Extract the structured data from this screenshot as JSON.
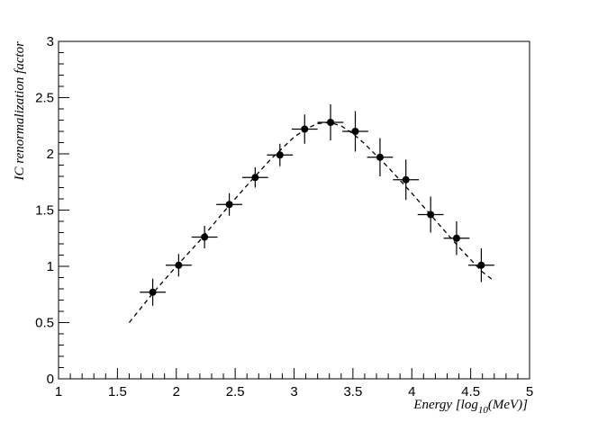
{
  "chart_data": {
    "type": "scatter",
    "xlabel_main": "Energy [log",
    "xlabel_sub": "10",
    "xlabel_tail": "(MeV)]",
    "ylabel": "IC renormalization factor",
    "xlim": [
      1,
      5
    ],
    "ylim": [
      0,
      3
    ],
    "x_ticks": [
      "1",
      "1.5",
      "2",
      "2.5",
      "3",
      "3.5",
      "4",
      "4.5",
      "5"
    ],
    "y_ticks": [
      "0",
      "0.5",
      "1",
      "1.5",
      "2",
      "2.5",
      "3"
    ],
    "grid": false,
    "series": [
      {
        "x": [
          1.8,
          2.02,
          2.24,
          2.45,
          2.67,
          2.88,
          3.09,
          3.31,
          3.52,
          3.73,
          3.95,
          4.16,
          4.38,
          4.59
        ],
        "y": [
          0.77,
          1.01,
          1.26,
          1.55,
          1.79,
          1.99,
          2.22,
          2.28,
          2.2,
          1.97,
          1.77,
          1.46,
          1.25,
          1.01
        ],
        "xerr": [
          0.11,
          0.11,
          0.11,
          0.11,
          0.11,
          0.11,
          0.11,
          0.11,
          0.11,
          0.11,
          0.11,
          0.11,
          0.11,
          0.11
        ],
        "yerr": [
          0.12,
          0.1,
          0.1,
          0.1,
          0.09,
          0.1,
          0.13,
          0.16,
          0.18,
          0.17,
          0.18,
          0.16,
          0.15,
          0.15
        ]
      }
    ],
    "fit_line": {
      "style": "dashed",
      "x": [
        1.6,
        1.8,
        2.0,
        2.2,
        2.4,
        2.6,
        2.8,
        3.0,
        3.1,
        3.2,
        3.3,
        3.4,
        3.5,
        3.6,
        3.8,
        4.0,
        4.2,
        4.4,
        4.6,
        4.7
      ],
      "y": [
        0.5,
        0.76,
        1.0,
        1.23,
        1.48,
        1.72,
        1.95,
        2.15,
        2.22,
        2.27,
        2.28,
        2.25,
        2.18,
        2.09,
        1.88,
        1.65,
        1.41,
        1.17,
        0.95,
        0.87
      ]
    }
  }
}
